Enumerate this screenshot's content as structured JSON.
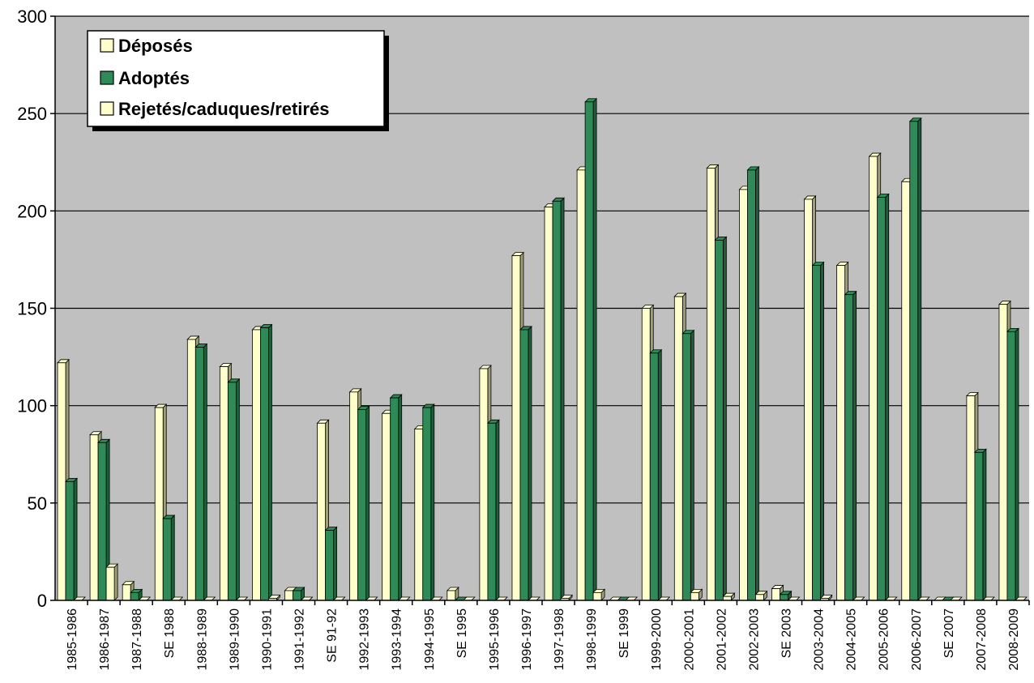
{
  "chart_data": {
    "type": "bar",
    "ylim": [
      0,
      300
    ],
    "yticks": [
      "0",
      "50",
      "100",
      "150",
      "200",
      "250",
      "300"
    ],
    "categories": [
      "1985-1986",
      "1986-1987",
      "1987-1988",
      "SE 1988",
      "1988-1989",
      "1989-1990",
      "1990-1991",
      "1991-1992",
      "SE 91-92",
      "1992-1993",
      "1993-1994",
      "1994-1995",
      "SE 1995",
      "1995-1996",
      "1996-1997",
      "1997-1998",
      "1998-1999",
      "SE 1999",
      "1999-2000",
      "2000-2001",
      "2001-2002",
      "2002-2003",
      "SE 2003",
      "2003-2004",
      "2004-2005",
      "2005-2006",
      "2006-2007",
      "SE 2007",
      "2007-2008",
      "2008-2009"
    ],
    "series": [
      {
        "name": "Déposés",
        "color": "#FFFFCC",
        "values": [
          122,
          85,
          8,
          99,
          134,
          120,
          139,
          5,
          91,
          107,
          96,
          88,
          5,
          119,
          177,
          202,
          221,
          0,
          150,
          156,
          222,
          211,
          6,
          206,
          172,
          228,
          215,
          0,
          105,
          152
        ]
      },
      {
        "name": "Adoptés",
        "color": "#2E8B57",
        "values": [
          61,
          81,
          4,
          42,
          130,
          112,
          140,
          5,
          36,
          98,
          104,
          99,
          0,
          91,
          139,
          205,
          256,
          0,
          127,
          137,
          185,
          221,
          3,
          172,
          157,
          207,
          246,
          0,
          76,
          138
        ]
      },
      {
        "name": "Rejetés/caduques/retirés",
        "color": "#FFFFCC",
        "values": [
          0,
          17,
          0,
          0,
          0,
          0,
          1,
          0,
          0,
          0,
          0,
          0,
          0,
          0,
          0,
          1,
          4,
          0,
          0,
          4,
          2,
          3,
          0,
          1,
          0,
          0,
          0,
          0,
          0,
          0
        ]
      }
    ],
    "grid": true,
    "legend_position": "top-left",
    "plot_background": "#C0C0C0"
  }
}
